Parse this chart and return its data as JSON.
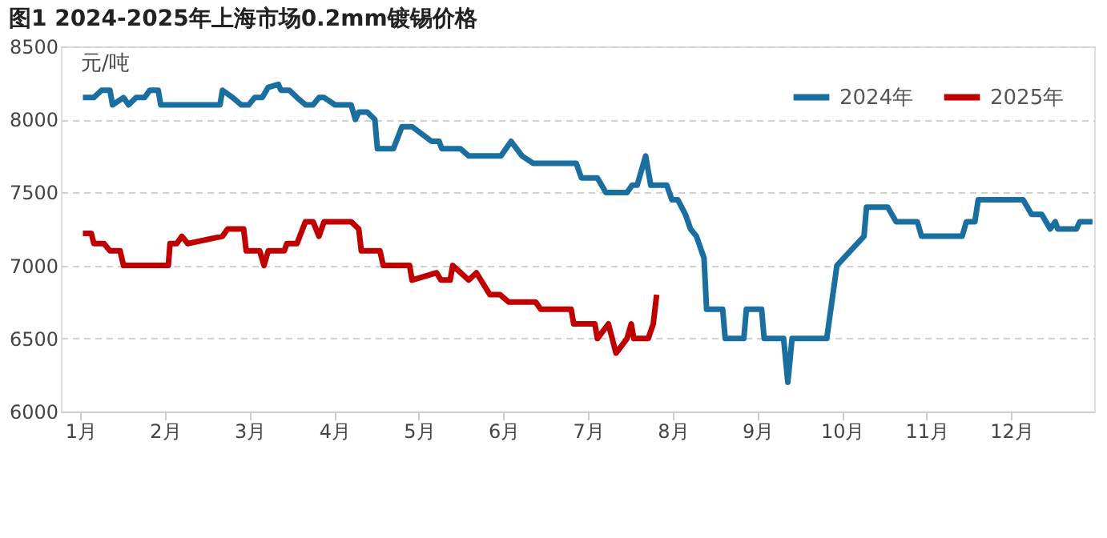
{
  "chart_data": {
    "type": "line",
    "title": "图1 2024-2025年上海市场0.2mm镀锡价格",
    "ylabel": "元/吨",
    "xlim": [
      0.77,
      12.98
    ],
    "xticks": [
      {
        "value": 1,
        "label": "1月"
      },
      {
        "value": 2,
        "label": "2月"
      },
      {
        "value": 3,
        "label": "3月"
      },
      {
        "value": 4,
        "label": "4月"
      },
      {
        "value": 5,
        "label": "5月"
      },
      {
        "value": 6,
        "label": "6月"
      },
      {
        "value": 7,
        "label": "7月"
      },
      {
        "value": 8,
        "label": "8月"
      },
      {
        "value": 9,
        "label": "9月"
      },
      {
        "value": 10,
        "label": "10月"
      },
      {
        "value": 11,
        "label": "11月"
      },
      {
        "value": 12,
        "label": "12月"
      }
    ],
    "ylim": [
      6000,
      8500
    ],
    "yticks": [
      6000,
      6500,
      7000,
      7500,
      8000,
      8500
    ],
    "grid": "y",
    "legend": "top right",
    "line_style": "solid",
    "marker": "none",
    "series": [
      {
        "name": "2024年",
        "color": "#1a6fa0",
        "x": [
          1.03,
          1.16,
          1.25,
          1.35,
          1.38,
          1.51,
          1.57,
          1.66,
          1.76,
          1.82,
          1.92,
          1.95,
          2.65,
          2.68,
          2.8,
          2.9,
          2.99,
          3.06,
          3.15,
          3.22,
          3.34,
          3.37,
          3.47,
          3.56,
          3.66,
          3.75,
          3.82,
          3.88,
          4.01,
          4.2,
          4.25,
          4.29,
          4.39,
          4.48,
          4.51,
          4.7,
          4.8,
          4.92,
          5.15,
          5.24,
          5.27,
          5.49,
          5.59,
          5.97,
          6.09,
          6.22,
          6.35,
          6.66,
          6.86,
          6.92,
          7.11,
          7.21,
          7.46,
          7.52,
          7.58,
          7.68,
          7.74,
          7.93,
          7.99,
          8.06,
          8.15,
          8.21,
          8.28,
          8.37,
          8.4,
          8.59,
          8.62,
          8.84,
          8.87,
          9.05,
          9.08,
          9.31,
          9.36,
          9.41,
          9.82,
          9.94,
          10.26,
          10.29,
          10.54,
          10.64,
          10.89,
          10.94,
          11.42,
          11.47,
          11.57,
          11.61,
          12.14,
          12.24,
          12.36,
          12.46,
          12.52,
          12.55,
          12.77,
          12.81,
          12.96
        ],
        "values": [
          8150,
          8150,
          8200,
          8200,
          8100,
          8150,
          8100,
          8150,
          8150,
          8200,
          8200,
          8100,
          8100,
          8200,
          8150,
          8100,
          8100,
          8150,
          8150,
          8220,
          8240,
          8200,
          8200,
          8150,
          8100,
          8100,
          8150,
          8150,
          8100,
          8100,
          8000,
          8050,
          8050,
          8000,
          7800,
          7800,
          7950,
          7950,
          7850,
          7850,
          7800,
          7800,
          7750,
          7750,
          7850,
          7750,
          7700,
          7700,
          7700,
          7600,
          7600,
          7500,
          7500,
          7550,
          7550,
          7750,
          7550,
          7550,
          7450,
          7450,
          7350,
          7250,
          7200,
          7050,
          6700,
          6700,
          6500,
          6500,
          6700,
          6700,
          6500,
          6500,
          6200,
          6500,
          6500,
          7000,
          7200,
          7400,
          7400,
          7300,
          7300,
          7200,
          7200,
          7300,
          7300,
          7450,
          7450,
          7350,
          7350,
          7250,
          7300,
          7250,
          7250,
          7300,
          7300
        ]
      },
      {
        "name": "2025年",
        "color": "#c00000",
        "x": [
          1.03,
          1.13,
          1.16,
          1.28,
          1.35,
          1.47,
          1.51,
          2.04,
          2.06,
          2.14,
          2.2,
          2.27,
          2.68,
          2.74,
          2.93,
          2.96,
          3.12,
          3.17,
          3.22,
          3.41,
          3.44,
          3.56,
          3.66,
          3.75,
          3.82,
          3.88,
          4.2,
          4.29,
          4.32,
          4.54,
          4.58,
          4.89,
          4.92,
          5.21,
          5.26,
          5.37,
          5.4,
          5.59,
          5.68,
          5.84,
          5.96,
          6.06,
          6.38,
          6.44,
          6.66,
          6.8,
          6.83,
          7.08,
          7.11,
          7.24,
          7.33,
          7.46,
          7.51,
          7.54,
          7.71,
          7.77,
          7.81
        ],
        "values": [
          7220,
          7220,
          7150,
          7150,
          7100,
          7100,
          7000,
          7000,
          7150,
          7150,
          7200,
          7150,
          7200,
          7250,
          7250,
          7100,
          7100,
          7000,
          7100,
          7100,
          7150,
          7150,
          7300,
          7300,
          7200,
          7300,
          7300,
          7250,
          7100,
          7100,
          7000,
          7000,
          6900,
          6950,
          6900,
          6900,
          7000,
          6900,
          6950,
          6800,
          6800,
          6750,
          6750,
          6700,
          6700,
          6700,
          6600,
          6600,
          6500,
          6600,
          6400,
          6500,
          6600,
          6500,
          6500,
          6600,
          6800
        ]
      }
    ]
  }
}
